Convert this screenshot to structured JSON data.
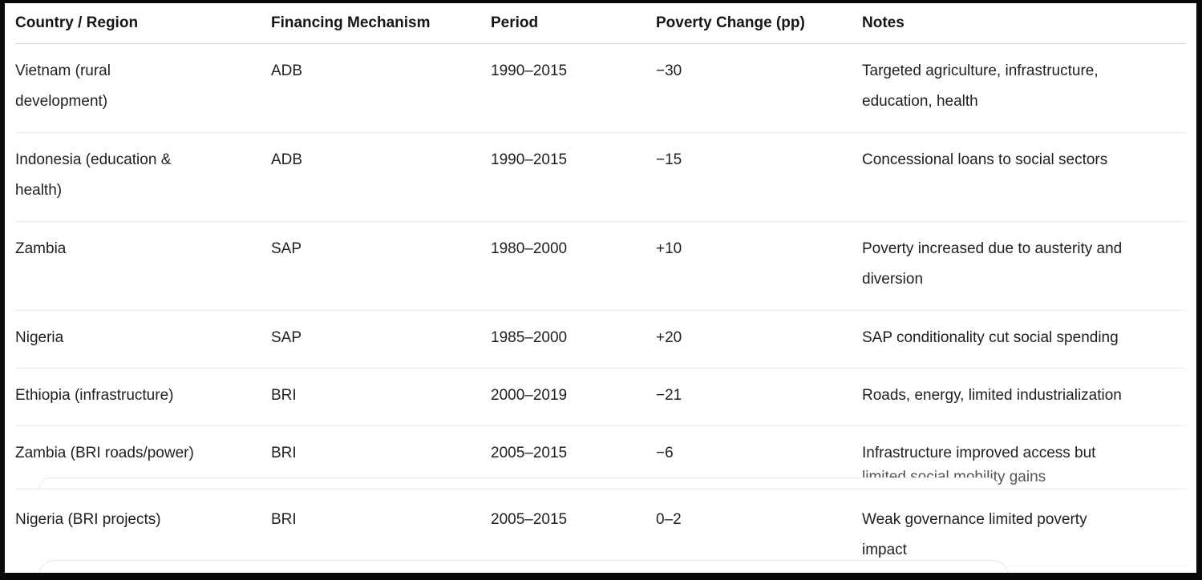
{
  "table": {
    "columns": [
      "Country / Region",
      "Financing Mechanism",
      "Period",
      "Poverty Change (pp)",
      "Notes"
    ],
    "rows": [
      {
        "country": "Vietnam (rural\ndevelopment)",
        "mechanism": "ADB",
        "period": "1990–2015",
        "change": "−30",
        "notes": "Targeted agriculture, infrastructure,\neducation, health"
      },
      {
        "country": "Indonesia (education &\nhealth)",
        "mechanism": "ADB",
        "period": "1990–2015",
        "change": "−15",
        "notes": "Concessional loans to social sectors"
      },
      {
        "country": "Zambia",
        "mechanism": "SAP",
        "period": "1980–2000",
        "change": "+10",
        "notes": "Poverty increased due to austerity and\ndiversion"
      },
      {
        "country": "Nigeria",
        "mechanism": "SAP",
        "period": "1985–2000",
        "change": "+20",
        "notes": "SAP conditionality cut social spending"
      },
      {
        "country": "Ethiopia (infrastructure)",
        "mechanism": "BRI",
        "period": "2000–2019",
        "change": "−21",
        "notes": "Roads, energy, limited industrialization"
      },
      {
        "country": "Zambia (BRI roads/power)",
        "mechanism": "BRI",
        "period": "2005–2015",
        "change": "−6",
        "notes": "Infrastructure improved access but",
        "notes_hidden": "limited social mobility gains"
      },
      {
        "country": "Nigeria (BRI projects)",
        "mechanism": "BRI",
        "period": "2005–2015",
        "change": "0–2",
        "notes": "Weak governance limited poverty\nimpact"
      }
    ]
  },
  "colors": {
    "text": "#1f1f1f",
    "header_divider": "#d4d4d4",
    "row_divider": "#ebebeb",
    "frame": "#0a0a0a",
    "background": "#ffffff",
    "card_border": "#e8e8e8"
  }
}
